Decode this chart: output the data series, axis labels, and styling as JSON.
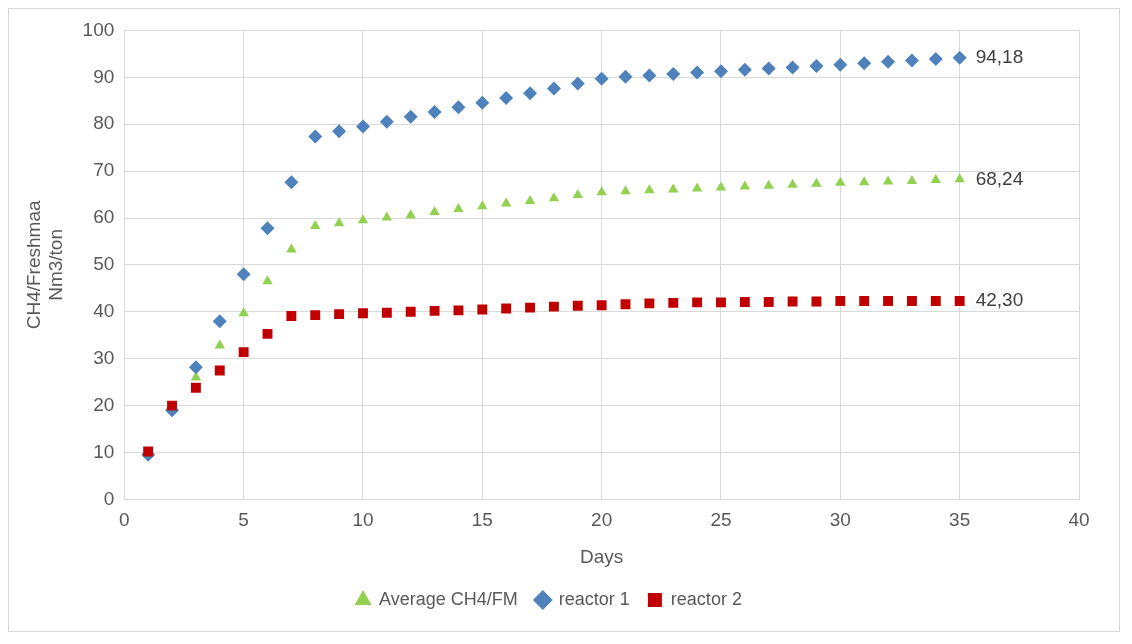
{
  "chart_data": {
    "type": "scatter",
    "xlabel": "Days",
    "ylabel": "CH4/Freshmaa\nNm3/ton",
    "x": [
      1,
      2,
      3,
      4,
      5,
      6,
      7,
      8,
      9,
      10,
      11,
      12,
      13,
      14,
      15,
      16,
      17,
      18,
      19,
      20,
      21,
      22,
      23,
      24,
      25,
      26,
      27,
      28,
      29,
      30,
      31,
      32,
      33,
      34,
      35
    ],
    "xlim": [
      0,
      40
    ],
    "xticks": [
      0,
      5,
      10,
      15,
      20,
      25,
      30,
      35,
      40
    ],
    "ylim": [
      0,
      100
    ],
    "yticks": [
      0,
      10,
      20,
      30,
      40,
      50,
      60,
      70,
      80,
      90,
      100
    ],
    "grid": true,
    "legend": "bottom",
    "series": [
      {
        "name": "Average CH4/FM",
        "color": "#92d050",
        "marker": "triangle",
        "values": [
          null,
          null,
          26,
          32.8,
          39.7,
          46.5,
          53.3,
          58.3,
          58.9,
          59.5,
          60.1,
          60.6,
          61.3,
          61.9,
          62.5,
          63.1,
          63.6,
          64.2,
          64.9,
          65.5,
          65.7,
          65.9,
          66.1,
          66.3,
          66.5,
          66.7,
          66.9,
          67.1,
          67.3,
          67.5,
          67.6,
          67.8,
          67.9,
          68.1,
          68.24
        ],
        "value_labels": [
          null,
          null,
          null,
          null,
          null,
          null,
          null,
          null,
          null,
          null,
          null,
          null,
          null,
          null,
          null,
          null,
          null,
          null,
          null,
          null,
          null,
          null,
          null,
          null,
          null,
          null,
          null,
          null,
          null,
          null,
          null,
          null,
          null,
          null,
          "68,24"
        ]
      },
      {
        "name": "reactor 1",
        "color": "#4f81bd",
        "marker": "diamond",
        "values": [
          9.5,
          19,
          28.2,
          38,
          48,
          57.8,
          67.6,
          77.4,
          78.5,
          79.5,
          80.5,
          81.6,
          82.6,
          83.6,
          84.6,
          85.6,
          86.6,
          87.6,
          88.7,
          89.7,
          90.1,
          90.4,
          90.7,
          91,
          91.3,
          91.6,
          91.9,
          92.1,
          92.4,
          92.7,
          93,
          93.3,
          93.6,
          93.9,
          94.18
        ],
        "value_labels": [
          null,
          null,
          null,
          null,
          null,
          null,
          null,
          null,
          null,
          null,
          null,
          null,
          null,
          null,
          null,
          null,
          null,
          null,
          null,
          null,
          null,
          null,
          null,
          null,
          null,
          null,
          null,
          null,
          null,
          null,
          null,
          null,
          null,
          null,
          "94,18"
        ]
      },
      {
        "name": "reactor 2",
        "color": "#c00000",
        "marker": "square",
        "values": [
          10.2,
          20,
          23.8,
          27.5,
          31.4,
          35.3,
          39.1,
          39.3,
          39.5,
          39.7,
          39.8,
          40,
          40.2,
          40.3,
          40.5,
          40.7,
          40.9,
          41.1,
          41.3,
          41.4,
          41.6,
          41.8,
          41.9,
          42,
          42,
          42.1,
          42.1,
          42.2,
          42.2,
          42.3,
          42.3,
          42.3,
          42.3,
          42.3,
          42.3
        ],
        "value_labels": [
          null,
          null,
          null,
          null,
          null,
          null,
          null,
          null,
          null,
          null,
          null,
          null,
          null,
          null,
          null,
          null,
          null,
          null,
          null,
          null,
          null,
          null,
          null,
          null,
          null,
          null,
          null,
          null,
          null,
          null,
          null,
          null,
          null,
          null,
          "42,30"
        ]
      }
    ]
  }
}
